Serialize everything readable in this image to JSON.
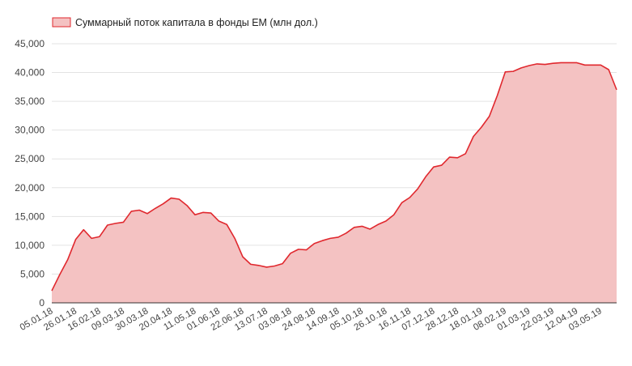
{
  "chart_data": {
    "type": "area",
    "legend": {
      "position": "top-left"
    },
    "series": [
      {
        "name": "Суммарный поток капитала в фонды ЕМ (млн дол.)",
        "color": "#e0282e",
        "fill": "#f4c2c2",
        "values": [
          2100,
          4900,
          7500,
          11000,
          12700,
          11200,
          11500,
          13500,
          13800,
          14000,
          15900,
          16100,
          15500,
          16400,
          17200,
          18200,
          18000,
          16900,
          15300,
          15700,
          15600,
          14200,
          13600,
          11200,
          8000,
          6700,
          6500,
          6200,
          6400,
          6800,
          8600,
          9300,
          9200,
          10300,
          10800,
          11200,
          11400,
          12100,
          13100,
          13300,
          12800,
          13600,
          14200,
          15300,
          17400,
          18300,
          19800,
          21900,
          23600,
          23900,
          25300,
          25200,
          25900,
          28900,
          30500,
          32400,
          36000,
          40100,
          40200,
          40800,
          41200,
          41500,
          41400,
          41600,
          41700,
          41700,
          41700,
          41300,
          41300,
          41300,
          40500,
          37000
        ]
      }
    ],
    "x_ticks": [
      "05.01.18",
      "26.01.18",
      "16.02.18",
      "09.03.18",
      "30.03.18",
      "20.04.18",
      "11.05.18",
      "01.06.18",
      "22.06.18",
      "13.07.18",
      "03.08.18",
      "24.08.18",
      "14.09.18",
      "05.10.18",
      "26.10.18",
      "16.11.18",
      "07.12.18",
      "28.12.18",
      "18.01.19",
      "08.02.19",
      "01.03.19",
      "22.03.19",
      "12.04.19",
      "03.05.19"
    ],
    "y_ticks": [
      "0",
      "5,000",
      "10,000",
      "15,000",
      "20,000",
      "25,000",
      "30,000",
      "35,000",
      "40,000",
      "45,000"
    ],
    "ylim": [
      0,
      45000
    ],
    "grid": true
  }
}
